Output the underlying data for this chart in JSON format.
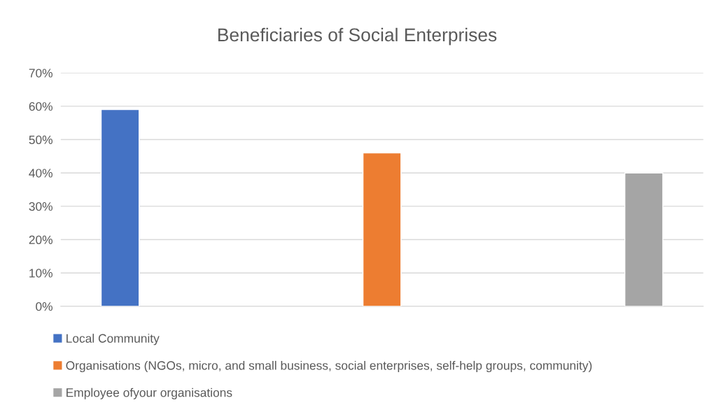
{
  "chart_data": {
    "type": "bar",
    "title": "Beneficiaries of Social Enterprises",
    "categories": [
      null,
      null,
      null
    ],
    "series": [
      {
        "name": "Local Community",
        "color": "#4472c4",
        "values": [
          59,
          null,
          null
        ]
      },
      {
        "name": "Organisations (NGOs, micro, and small business, social enterprises, self-help groups, community)",
        "color": "#ed7d31",
        "values": [
          null,
          46,
          null
        ]
      },
      {
        "name": "Employee ofyour organisations",
        "color": "#a5a5a5",
        "values": [
          null,
          null,
          40
        ]
      }
    ],
    "ylim": [
      0,
      70
    ],
    "yticks": [
      {
        "value": 0,
        "label": "0%"
      },
      {
        "value": 10,
        "label": "10%"
      },
      {
        "value": 20,
        "label": "20%"
      },
      {
        "value": 30,
        "label": "30%"
      },
      {
        "value": 40,
        "label": "40%"
      },
      {
        "value": 50,
        "label": "50%"
      },
      {
        "value": 60,
        "label": "60%"
      },
      {
        "value": 70,
        "label": "70%"
      }
    ],
    "grid": "y",
    "legend": "bottom"
  }
}
